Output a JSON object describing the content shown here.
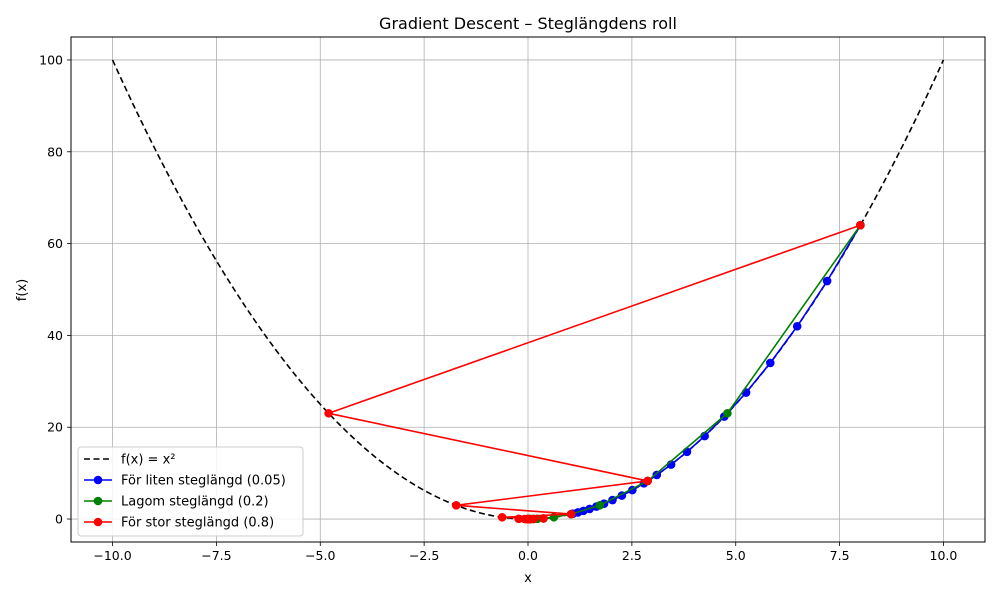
{
  "chart_data": {
    "type": "line",
    "title": "Gradient Descent – Steglängdens roll",
    "xlabel": "x",
    "ylabel": "f(x)",
    "xlim": [
      -11,
      11
    ],
    "ylim": [
      -5,
      105
    ],
    "xticks": [
      -10,
      -7.5,
      -5,
      -2.5,
      0,
      2.5,
      5,
      7.5,
      10
    ],
    "xtick_labels": [
      "−10.0",
      "−7.5",
      "−5.0",
      "−2.5",
      "0.0",
      "2.5",
      "5.0",
      "7.5",
      "10.0"
    ],
    "yticks": [
      0,
      20,
      40,
      60,
      80,
      100
    ],
    "ytick_labels": [
      "0",
      "20",
      "40",
      "60",
      "80",
      "100"
    ],
    "grid": true,
    "legend_position": "bottom-left",
    "curve": {
      "name": "f(x) = x²",
      "color": "#000000",
      "style": "dashed",
      "x_range": [
        -10,
        10
      ]
    },
    "series": [
      {
        "name": "För liten steglängd (0.05)",
        "color": "#0000ff",
        "x": [
          8,
          7.2,
          6.48,
          5.832,
          5.2488,
          4.72392,
          4.251528,
          3.8263752,
          3.44373768,
          3.099363912,
          2.7894275208,
          2.51048476872,
          2.259436291848,
          2.0334926626632,
          1.83014339639688,
          1.647129056757192,
          1.4824161510814728,
          1.3341745359733257,
          1.200757082375993,
          1.0806813741383936
        ],
        "y": [
          64,
          51.84,
          41.9904,
          34.012224,
          27.54990144,
          22.3154201664,
          18.075490334784,
          14.64114717117504,
          11.8593292086518,
          9.6060566590079,
          7.78090589379643,
          6.30253377397511,
          5.10505235691984,
          4.13509240910507,
          3.34942485137511,
          2.71303412961384,
          2.19753764498721,
          1.78000549243964,
          1.44180444887611,
          1.16786160358965
        ]
      },
      {
        "name": "Lagom steglängd (0.2)",
        "color": "#008000",
        "x": [
          8,
          4.8,
          2.88,
          1.728,
          1.0368,
          0.62208,
          0.373248,
          0.2239488,
          0.13436928,
          0.080621568,
          0.0483729408,
          0.02902376448,
          0.017414258688,
          0.0104485552128,
          0.00626913312768,
          0.003761479876608,
          0.0022568879259648,
          0.00135413275557888,
          0.000812479653347328,
          0.000487487792008397
        ],
        "y": [
          64,
          23.04,
          8.2944,
          2.985984,
          1.07495424,
          0.3869835264,
          0.139314069504,
          0.0501530650214,
          0.0180551034077,
          0.00649983722678,
          0.00233994140164,
          0.000842378904591,
          0.000303256405653,
          0.000109172306035,
          3.93020301725e-05,
          1.41487308621e-05,
          5.09354311037e-06,
          1.83367551973e-06,
          6.601231871e-07,
          2.3764434736e-07
        ]
      },
      {
        "name": "För stor steglängd (0.8)",
        "color": "#ff0000",
        "x": [
          8,
          -4.8,
          2.88,
          -1.728,
          1.0368,
          -0.62208,
          0.373248,
          -0.2239488,
          0.13436928,
          -0.080621568,
          0.0483729408,
          -0.02902376448,
          0.017414258688,
          -0.0104485552128,
          0.00626913312768,
          -0.003761479876608,
          0.0022568879259648,
          -0.00135413275557888,
          0.000812479653347328,
          -0.000487487792008397
        ],
        "y": [
          64,
          23.04,
          8.2944,
          2.985984,
          1.07495424,
          0.3869835264,
          0.139314069504,
          0.0501530650214,
          0.0180551034077,
          0.00649983722678,
          0.00233994140164,
          0.000842378904591,
          0.000303256405653,
          0.000109172306035,
          3.93020301725e-05,
          1.41487308621e-05,
          5.09354311037e-06,
          1.83367551973e-06,
          6.601231871e-07,
          2.3764434736e-07
        ]
      }
    ]
  }
}
